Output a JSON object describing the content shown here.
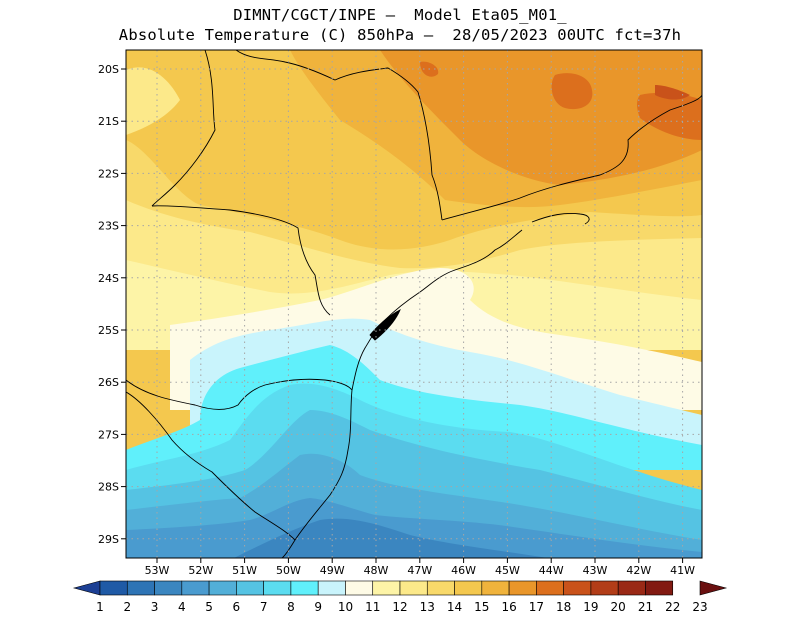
{
  "header": {
    "line1": "DIMNT/CGCT/INPE –  Model Eta05_M01_",
    "line2": "Absolute Temperature (C) 850hPa –  28/05/2023 00UTC fct=37h"
  },
  "map": {
    "lat_labels": [
      "20S",
      "21S",
      "22S",
      "23S",
      "24S",
      "25S",
      "26S",
      "27S",
      "28S",
      "29S"
    ],
    "lon_labels": [
      "53W",
      "52W",
      "51W",
      "50W",
      "49W",
      "48W",
      "47W",
      "46W",
      "45W",
      "44W",
      "43W",
      "42W",
      "41W"
    ]
  },
  "colorbar": {
    "labels": [
      "1",
      "2",
      "3",
      "4",
      "5",
      "6",
      "7",
      "8",
      "9",
      "10",
      "11",
      "12",
      "13",
      "14",
      "15",
      "16",
      "17",
      "18",
      "19",
      "20",
      "21",
      "22",
      "23"
    ],
    "colors": [
      "#1c3f94",
      "#1f5aa6",
      "#2e74b5",
      "#3b86c0",
      "#4a9bcf",
      "#52afd8",
      "#55c3e3",
      "#5bdcf0",
      "#60f0fb",
      "#c9f4fc",
      "#fefbe6",
      "#fdf4a7",
      "#fce98a",
      "#f8d96a",
      "#f4c84e",
      "#f0b33c",
      "#e9962a",
      "#dc6f1d",
      "#c9521a",
      "#b23d18",
      "#9a2916",
      "#821a12",
      "#6a1010"
    ]
  }
}
